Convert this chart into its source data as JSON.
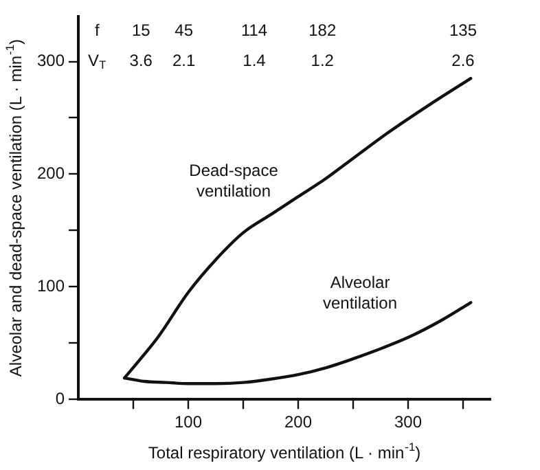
{
  "chart_data": {
    "type": "line",
    "xlabel": "Total respiratory ventilation (L · min$^{-1}$)",
    "ylabel": "Alveolar and dead-space ventilation (L · min$^{-1}$)",
    "series": [
      {
        "name": "Dead-space ventilation",
        "color": "#111111",
        "x": [
          42,
          60,
          73,
          100,
          125,
          150,
          175,
          200,
          225,
          250,
          282,
          320,
          357
        ],
        "values": [
          19,
          40,
          56,
          95,
          124,
          148,
          164,
          180,
          196,
          214,
          237,
          262,
          285
        ]
      },
      {
        "name": "Alveolar ventilation",
        "color": "#111111",
        "x": [
          42,
          60,
          80,
          100,
          125,
          150,
          175,
          200,
          225,
          250,
          275,
          300,
          330,
          357
        ],
        "values": [
          19,
          16,
          15,
          14,
          14,
          15,
          18,
          22,
          28,
          36,
          45,
          55,
          70,
          86
        ]
      }
    ],
    "xlim": [
      0,
      375
    ],
    "xticks": [
      {
        "value": 50,
        "label": null
      },
      100,
      {
        "value": 150,
        "label": null
      },
      200,
      {
        "value": 250,
        "label": null
      },
      300,
      {
        "value": 350,
        "label": null
      }
    ],
    "ylim": [
      0,
      340
    ],
    "yticks": [
      0,
      {
        "value": 50,
        "label": null
      },
      100,
      {
        "value": 150,
        "label": null
      },
      200,
      {
        "value": 250,
        "label": null
      },
      300
    ],
    "grid": false,
    "legend": false,
    "marker": "none",
    "line_style": "solid",
    "annotations": [
      "f",
      "15",
      "45",
      "114",
      "182",
      "135",
      "V$_{T}$",
      "3.6",
      "2.1",
      "1.4",
      "1.2",
      "2.6"
    ]
  }
}
